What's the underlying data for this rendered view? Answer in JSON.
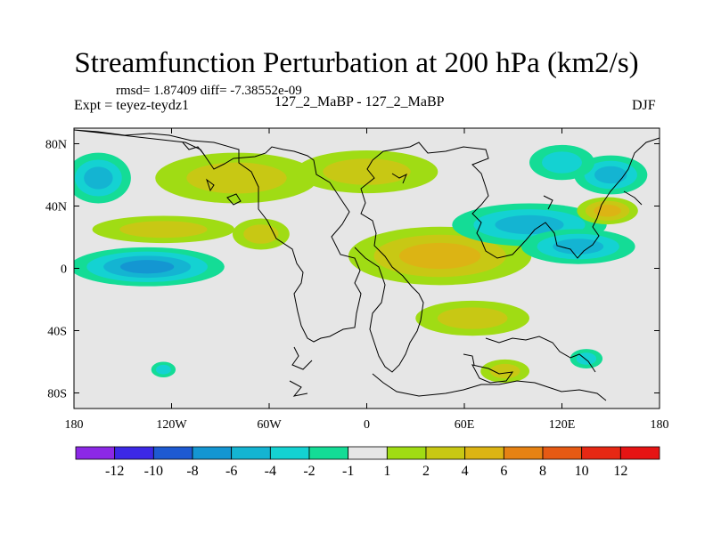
{
  "chart_data": {
    "type": "contour-map",
    "title": "Streamfunction Perturbation at 200 hPa (km2/s)",
    "subtitle": "rmsd= 1.87409 diff= -7.38552e-09",
    "left_label": "Expt = teyez-teydz1",
    "center_label": "127_2_MaBP - 127_2_MaBP",
    "right_label": "DJF",
    "x_range": [
      -180,
      180
    ],
    "y_range": [
      -90,
      90
    ],
    "x_ticks": [
      {
        "value": -180,
        "label": "180"
      },
      {
        "value": -120,
        "label": "120W"
      },
      {
        "value": -60,
        "label": "60W"
      },
      {
        "value": 0,
        "label": "0"
      },
      {
        "value": 60,
        "label": "60E"
      },
      {
        "value": 120,
        "label": "120E"
      },
      {
        "value": 180,
        "label": "180"
      }
    ],
    "y_ticks": [
      {
        "value": 80,
        "label": "80N"
      },
      {
        "value": 40,
        "label": "40N"
      },
      {
        "value": 0,
        "label": "0"
      },
      {
        "value": -40,
        "label": "40S"
      },
      {
        "value": -80,
        "label": "80S"
      }
    ],
    "colorbar": {
      "labels": [
        "-12",
        "-10",
        "-8",
        "-6",
        "-4",
        "-2",
        "-1",
        "1",
        "2",
        "4",
        "6",
        "8",
        "10",
        "12"
      ],
      "colors": [
        "#8c28e6",
        "#3c28e6",
        "#1e5ad2",
        "#1496d2",
        "#14b4d2",
        "#14d2d2",
        "#14dc96",
        "#e6e6e6",
        "#a0dc14",
        "#c8c814",
        "#dcb414",
        "#e68214",
        "#e65a14",
        "#e62814",
        "#e61414"
      ]
    },
    "anomaly_regions": [
      {
        "name": "n-pacific-low",
        "level": -4,
        "lon": -165,
        "lat": 58,
        "sx": 16,
        "sy": 13
      },
      {
        "name": "trop-pacific-low",
        "level": -6,
        "lon": -135,
        "lat": 1,
        "sx": 38,
        "sy": 10
      },
      {
        "name": "n-america-high",
        "level": 3,
        "lon": -80,
        "lat": 58,
        "sx": 40,
        "sy": 13
      },
      {
        "name": "n-atlantic-high",
        "level": 3,
        "lon": 0,
        "lat": 62,
        "sx": 35,
        "sy": 11
      },
      {
        "name": "mid-pacific-high",
        "level": 2,
        "lon": -125,
        "lat": 25,
        "sx": 35,
        "sy": 7
      },
      {
        "name": "trop-atlantic-high",
        "level": 2,
        "lon": -65,
        "lat": 22,
        "sx": 14,
        "sy": 8
      },
      {
        "name": "africa-arabia-high",
        "level": 4,
        "lon": 45,
        "lat": 8,
        "sx": 45,
        "sy": 15
      },
      {
        "name": "indian-ocean-high",
        "level": 3,
        "lon": 65,
        "lat": -32,
        "sx": 28,
        "sy": 9
      },
      {
        "name": "s-ocean-high",
        "level": 2,
        "lon": 85,
        "lat": -66,
        "sx": 12,
        "sy": 6
      },
      {
        "name": "asia-low",
        "level": -4,
        "lon": 100,
        "lat": 28,
        "sx": 38,
        "sy": 11
      },
      {
        "name": "w-pacific-low",
        "level": -4,
        "lon": 130,
        "lat": 14,
        "sx": 28,
        "sy": 9
      },
      {
        "name": "siberia-low",
        "level": -4,
        "lon": 150,
        "lat": 60,
        "sx": 18,
        "sy": 10
      },
      {
        "name": "siberia-low-edge",
        "level": -3,
        "lon": 120,
        "lat": 68,
        "sx": 16,
        "sy": 9
      },
      {
        "name": "japan-high",
        "level": 5,
        "lon": 148,
        "lat": 37,
        "sx": 15,
        "sy": 7
      },
      {
        "name": "s-pacific-low",
        "level": -2,
        "lon": 135,
        "lat": -58,
        "sx": 8,
        "sy": 5
      },
      {
        "name": "s-atlantic-low",
        "level": -2,
        "lon": -125,
        "lat": -65,
        "sx": 6,
        "sy": 4
      }
    ]
  }
}
